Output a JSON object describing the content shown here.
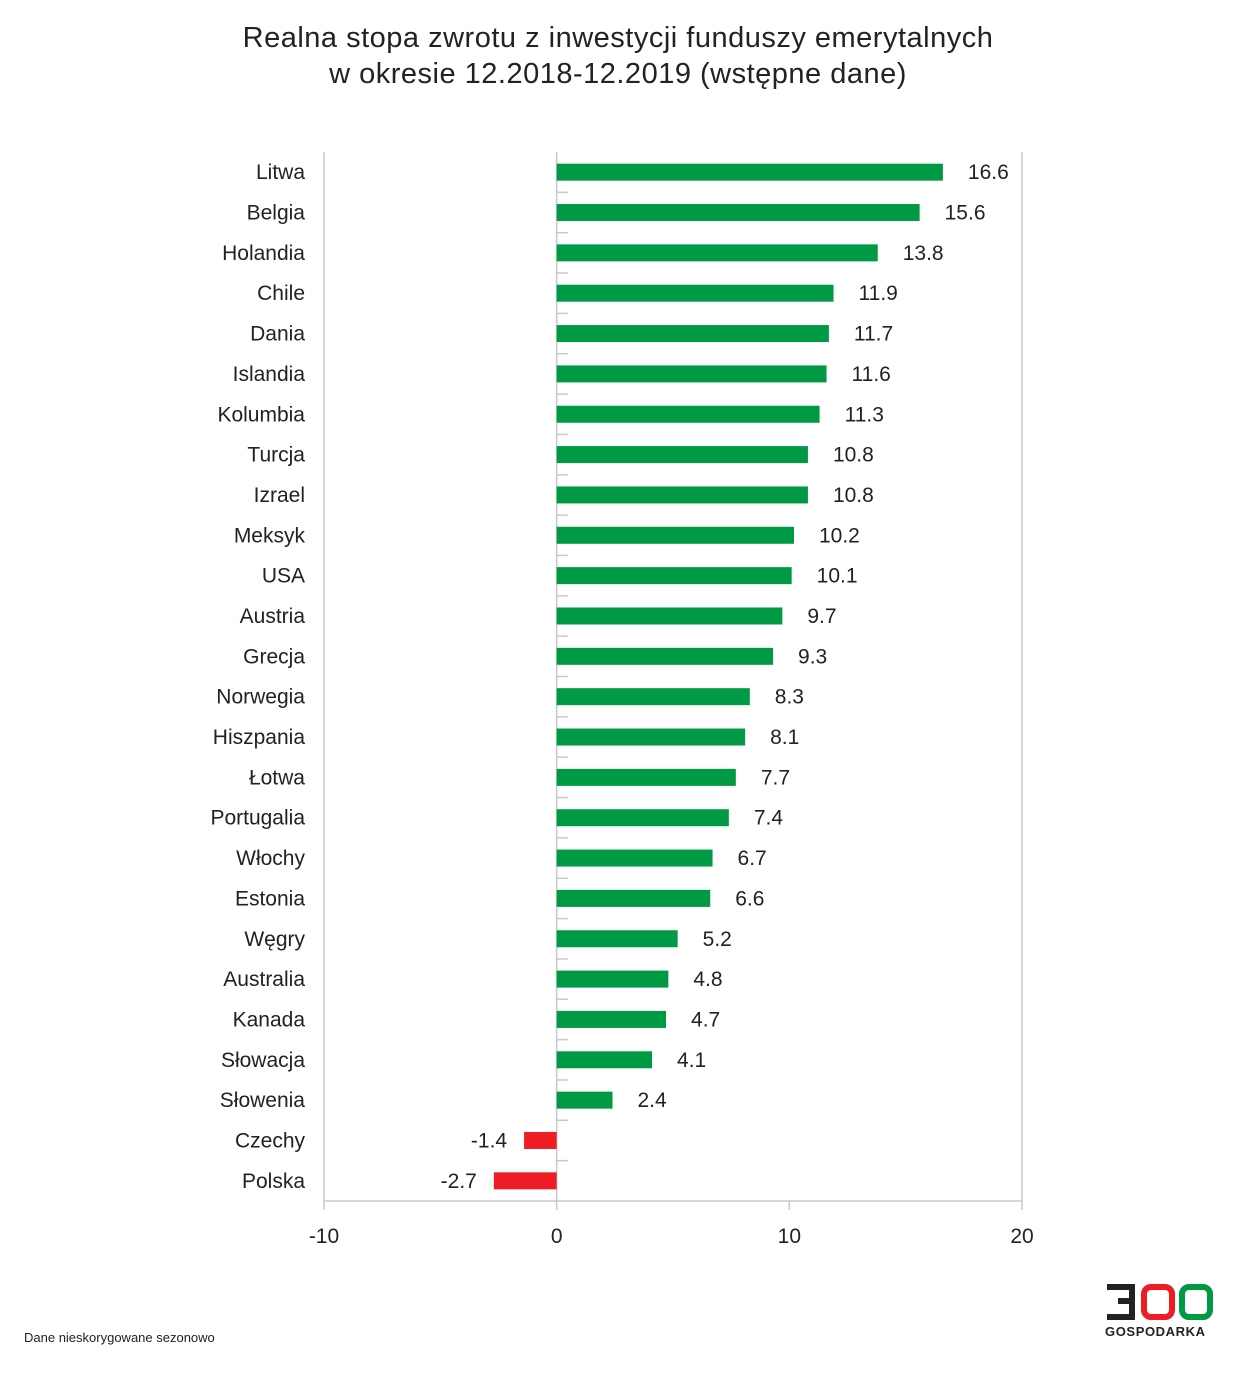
{
  "chart_data": {
    "type": "bar",
    "orientation": "horizontal",
    "title": [
      "Realna stopa zwrotu z inwestycji funduszy emerytalnych",
      "w okresie 12.2018-12.2019 (wstępne dane)"
    ],
    "xlabel": "",
    "ylabel": "",
    "xlim": [
      -10,
      20
    ],
    "x_ticks": [
      "-10",
      "0",
      "10",
      "20"
    ],
    "grid": false,
    "legend": "none",
    "categories": [
      "Litwa",
      "Belgia",
      "Holandia",
      "Chile",
      "Dania",
      "Islandia",
      "Kolumbia",
      "Turcja",
      "Izrael",
      "Meksyk",
      "USA",
      "Austria",
      "Grecja",
      "Norwegia",
      "Hiszpania",
      "Łotwa",
      "Portugalia",
      "Włochy",
      "Estonia",
      "Węgry",
      "Australia",
      "Kanada",
      "Słowacja",
      "Słowenia",
      "Czechy",
      "Polska"
    ],
    "values": [
      16.6,
      15.6,
      13.8,
      11.9,
      11.7,
      11.6,
      11.3,
      10.8,
      10.8,
      10.2,
      10.1,
      9.7,
      9.3,
      8.3,
      8.1,
      7.7,
      7.4,
      6.7,
      6.6,
      5.2,
      4.8,
      4.7,
      4.1,
      2.4,
      -1.4,
      -2.7
    ],
    "value_labels": [
      "16.6",
      "15.6",
      "13.8",
      "11.9",
      "11.7",
      "11.6",
      "11.3",
      "10.8",
      "10.8",
      "10.2",
      "10.1",
      "9.7",
      "9.3",
      "8.3",
      "8.1",
      "7.7",
      "7.4",
      "6.7",
      "6.6",
      "5.2",
      "4.8",
      "4.7",
      "4.1",
      "2.4",
      "-1.4",
      "-2.7"
    ],
    "colors": {
      "positive": "#009a44",
      "negative": "#ee1c25"
    }
  },
  "footnote": "Dane nieskorygowane sezonowo",
  "logo": {
    "digits": "300",
    "text": "GOSPODARKA",
    "colors": {
      "dark": "#222222",
      "red": "#ee1c25",
      "green": "#009a44"
    }
  }
}
